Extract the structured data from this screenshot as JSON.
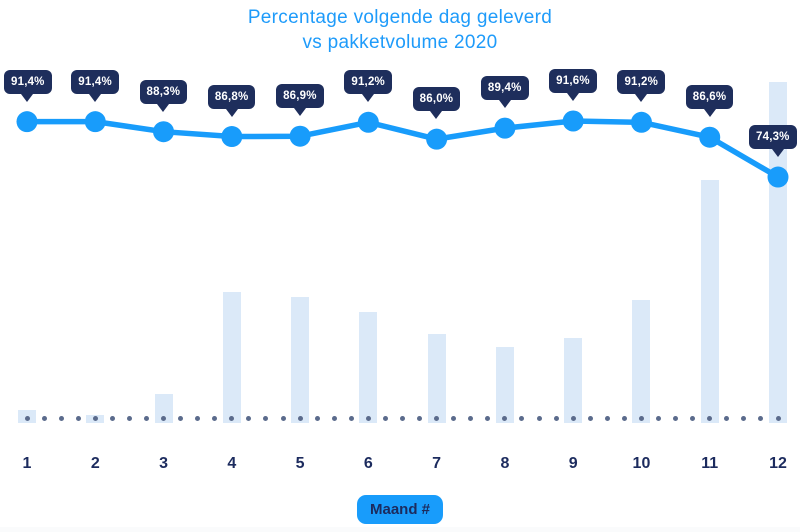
{
  "title": {
    "line1": "Percentage volgende dag geleverd",
    "line2": "vs pakketvolume 2020"
  },
  "x_axis": {
    "badge_label": "Maand #",
    "tick_labels": [
      "1",
      "2",
      "3",
      "4",
      "5",
      "6",
      "7",
      "8",
      "9",
      "10",
      "11",
      "12"
    ]
  },
  "chart_data": {
    "type": "combo",
    "title": "Percentage volgende dag geleverd vs pakketvolume 2020",
    "xlabel": "Maand #",
    "ylabel": "",
    "x": [
      1,
      2,
      3,
      4,
      5,
      6,
      7,
      8,
      9,
      10,
      11,
      12
    ],
    "series": [
      {
        "name": "Percentage volgende dag geleverd",
        "type": "line",
        "values": [
          91.4,
          91.4,
          88.3,
          86.8,
          86.9,
          91.2,
          86.0,
          89.4,
          91.6,
          91.2,
          86.6,
          74.3
        ],
        "point_labels": [
          "91,4%",
          "91,4%",
          "88,3%",
          "86,8%",
          "86,9%",
          "91,2%",
          "86,0%",
          "89,4%",
          "91,6%",
          "91,2%",
          "86,6%",
          "74,3%"
        ],
        "color": "#189cfb"
      },
      {
        "name": "Pakketvolume 2020",
        "type": "bar",
        "values": [
          3.8,
          2.3,
          8.5,
          38.4,
          37.0,
          32.6,
          26.1,
          22.3,
          24.9,
          36.1,
          71.3,
          100
        ],
        "scale": "relative index, no axis shown (max month 12 = 100)",
        "color": "#dbe9f8"
      }
    ],
    "ylim": [
      74,
      92
    ],
    "y_axis_visible": false,
    "gridlines": false,
    "baseline_style": "dotted",
    "legend": "none"
  },
  "colors": {
    "title": "#1e9bfa",
    "line": "#189cfb",
    "tooltip_bg": "#1e2e5c",
    "tooltip_text": "#ffffff",
    "bar": "#dbe9f8",
    "baseline_dot": "#5b6b8c",
    "axis_label": "#1c2b5e",
    "badge_bg": "#189cfb",
    "badge_text": "#1c2b5e",
    "background": "#ffffff"
  }
}
